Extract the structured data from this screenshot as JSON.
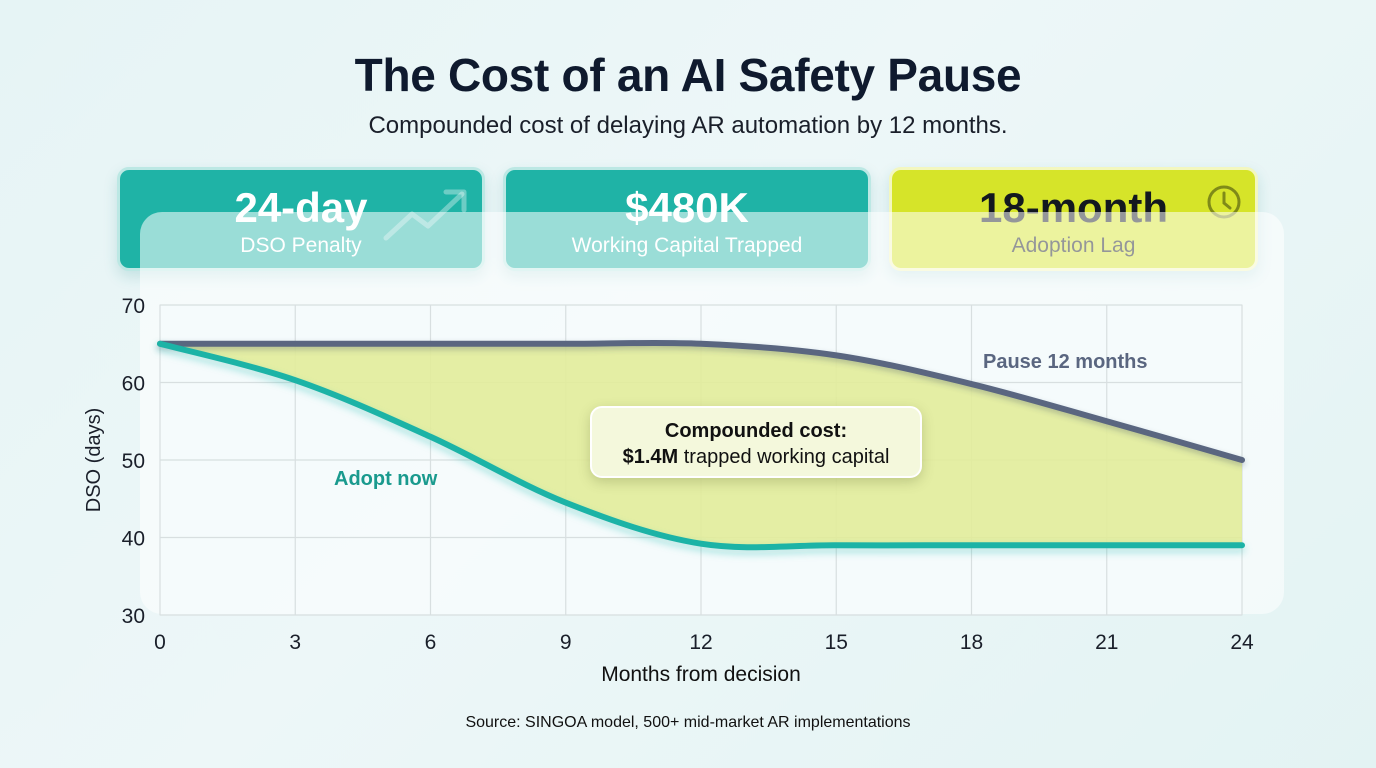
{
  "header": {
    "title": "The Cost of an AI Safety Pause",
    "subtitle": "Compounded cost of delaying AR automation by 12 months."
  },
  "kpis": [
    {
      "value": "24-day",
      "label": "DSO Penalty",
      "icon": "trend-up-arrow-icon",
      "color": "#1fb3a6"
    },
    {
      "value": "$480K",
      "label": "Working Capital Trapped",
      "icon": "",
      "color": "#1fb3a6"
    },
    {
      "value": "18-month",
      "label": "Adoption Lag",
      "icon": "clock-icon",
      "color": "#d6e429"
    }
  ],
  "annotations": {
    "adopt_label": "Adopt now",
    "pause_label": "Pause 12 months",
    "callout_title": "Compounded cost:",
    "callout_bold": "$1.4M",
    "callout_rest": " trapped working capital"
  },
  "source": "Source: SINGOA model, 500+ mid-market AR implementations",
  "colors": {
    "adopt": "#1fb3a6",
    "pause": "#5a6680",
    "gap_fill": "#e2ec9a",
    "grid": "#d8dfe0"
  },
  "chart_data": {
    "type": "line",
    "title": "The Cost of an AI Safety Pause",
    "subtitle": "Compounded cost of delaying AR automation by 12 months.",
    "xlabel": "Months from decision",
    "ylabel": "DSO (days)",
    "xlim": [
      0,
      24
    ],
    "ylim": [
      30,
      70
    ],
    "xticks": [
      0,
      3,
      6,
      9,
      12,
      15,
      18,
      21,
      24
    ],
    "yticks": [
      30,
      40,
      50,
      60,
      70
    ],
    "grid": true,
    "x": [
      0,
      3,
      6,
      9,
      12,
      15,
      18,
      21,
      24
    ],
    "series": [
      {
        "name": "Adopt now",
        "values": [
          65,
          60.3,
          53,
          44.5,
          39.2,
          39,
          39,
          39,
          39
        ]
      },
      {
        "name": "Pause 12 months",
        "values": [
          65,
          65,
          65,
          65,
          65,
          63.5,
          59.8,
          55,
          50
        ]
      }
    ],
    "fill_between": {
      "series": [
        "Adopt now",
        "Pause 12 months"
      ],
      "color": "#e2ec9a"
    },
    "annotations": [
      {
        "text": "Compounded cost: $1.4M trapped working capital",
        "x": 12.4,
        "y": 48
      }
    ]
  }
}
